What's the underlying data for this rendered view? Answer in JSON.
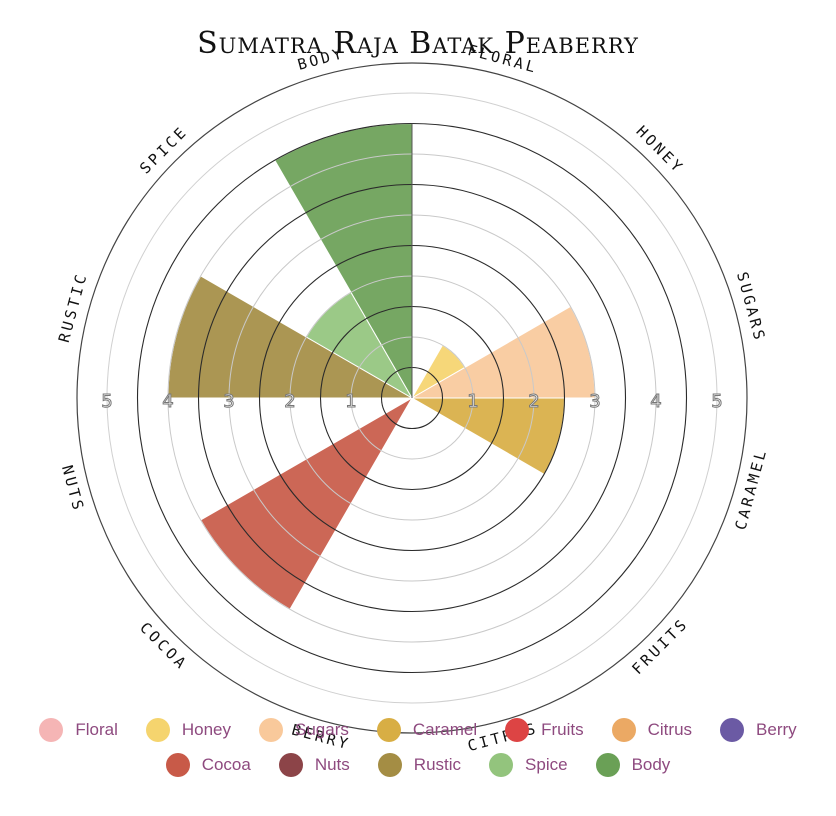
{
  "chart_data": {
    "type": "polar-area",
    "title": "Sumatra Raja Batak Peaberry",
    "categories": [
      "Floral",
      "Honey",
      "Sugars",
      "Caramel",
      "Fruits",
      "Citrus",
      "Berry",
      "Cocoa",
      "Nuts",
      "Rustic",
      "Spice",
      "Body"
    ],
    "values": [
      0,
      1,
      3,
      2.5,
      0,
      0,
      0,
      4,
      0,
      4,
      2,
      4.5
    ],
    "colors": [
      "#f5b5b5",
      "#f5d46e",
      "#f9c99b",
      "#d8ae44",
      "#dd4444",
      "#eba964",
      "#6b5aa4",
      "#c85a48",
      "#8c4448",
      "#a48d44",
      "#93c47d",
      "#6aa056"
    ],
    "rlim": [
      0,
      5
    ],
    "ring_labels": [
      "1",
      "2",
      "3",
      "4",
      "5"
    ]
  }
}
